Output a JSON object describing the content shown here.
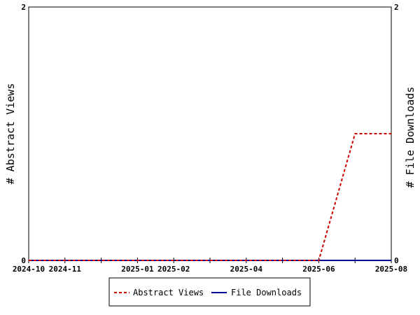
{
  "chart_data": {
    "type": "line",
    "x": [
      "2024-10",
      "2024-11",
      "2024-12",
      "2025-01",
      "2025-02",
      "2025-03",
      "2025-04",
      "2025-05",
      "2025-06",
      "2025-07",
      "2025-08"
    ],
    "x_tick_labels": [
      "2024-10",
      "2024-11",
      "2025-01",
      "2025-02",
      "2025-04",
      "2025-06",
      "2025-08"
    ],
    "series": [
      {
        "name": "Abstract Views",
        "axis": "left",
        "color": "#cc0000",
        "dash": "dashed",
        "values": [
          0,
          0,
          0,
          0,
          0,
          0,
          0,
          0,
          0,
          1,
          1
        ]
      },
      {
        "name": "File Downloads",
        "axis": "right",
        "color": "#000099",
        "dash": "solid",
        "values": [
          0,
          0,
          0,
          0,
          0,
          0,
          0,
          0,
          0,
          0,
          0
        ]
      }
    ],
    "ylabel_left": "# Abstract Views",
    "ylabel_right": "# File Downloads",
    "ylim_left": [
      0,
      2
    ],
    "ylim_right": [
      0,
      2
    ],
    "y_ticks_left": [
      "0",
      "2"
    ],
    "y_ticks_right": [
      "0",
      "2"
    ],
    "legend_position": "bottom-center",
    "grid": false
  }
}
